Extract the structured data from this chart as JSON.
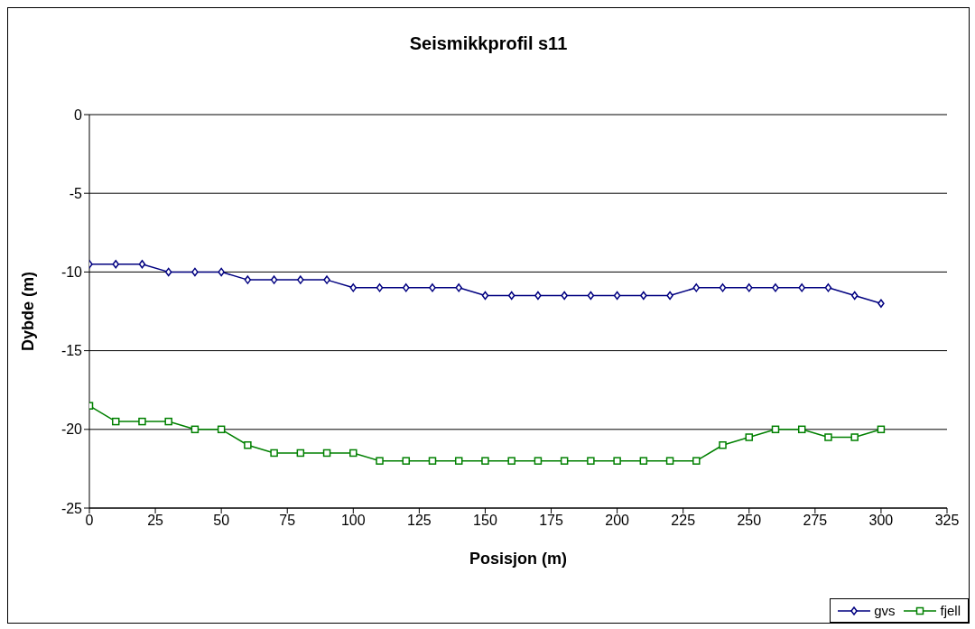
{
  "chart_data": {
    "type": "line",
    "title": "Seismikkprofil s11",
    "xlabel": "Posisjon (m)",
    "ylabel": "Dybde (m)",
    "x": [
      0,
      10,
      20,
      30,
      40,
      50,
      60,
      70,
      80,
      90,
      100,
      110,
      120,
      130,
      140,
      150,
      160,
      170,
      180,
      190,
      200,
      210,
      220,
      230,
      240,
      250,
      260,
      270,
      280,
      290,
      300
    ],
    "series": [
      {
        "name": "gvs",
        "color": "#000080",
        "marker": "diamond",
        "values": [
          -9.5,
          -9.5,
          -9.5,
          -10,
          -10,
          -10,
          -10.5,
          -10.5,
          -10.5,
          -10.5,
          -11,
          -11,
          -11,
          -11,
          -11,
          -11.5,
          -11.5,
          -11.5,
          -11.5,
          -11.5,
          -11.5,
          -11.5,
          -11.5,
          -11,
          -11,
          -11,
          -11,
          -11,
          -11,
          -11.5,
          -12
        ]
      },
      {
        "name": "fjell",
        "color": "#008000",
        "marker": "square",
        "values": [
          -18.5,
          -19.5,
          -19.5,
          -19.5,
          -20,
          -20,
          -21,
          -21.5,
          -21.5,
          -21.5,
          -21.5,
          -22,
          -22,
          -22,
          -22,
          -22,
          -22,
          -22,
          -22,
          -22,
          -22,
          -22,
          -22,
          -22,
          -21,
          -20.5,
          -20,
          -20,
          -20.5,
          -20.5,
          -20
        ]
      }
    ],
    "xlim": [
      0,
      325
    ],
    "xticks": [
      0,
      25,
      50,
      75,
      100,
      125,
      150,
      175,
      200,
      225,
      250,
      275,
      300,
      325
    ],
    "ylim": [
      -25,
      0
    ],
    "yticks": [
      0,
      -5,
      -10,
      -15,
      -20,
      -25
    ],
    "grid": "y",
    "legend": "bottom right",
    "line_style": "solid"
  }
}
